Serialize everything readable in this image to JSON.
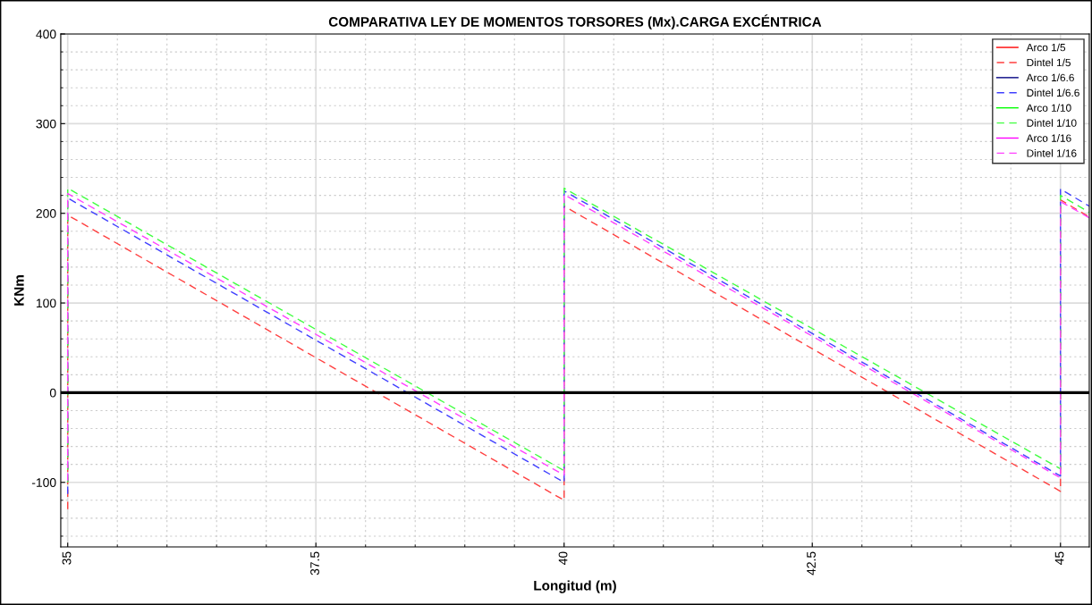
{
  "chart_data": {
    "type": "line",
    "title": "COMPARATIVA LEY DE MOMENTOS TORSORES (Mx).CARGA EXCÉNTRICA",
    "xlabel": "Longitud (m)",
    "ylabel": "KNm",
    "x": [
      35,
      35,
      40,
      40,
      45,
      45,
      45.29
    ],
    "series": [
      {
        "name": "Arco 1/5",
        "color": "#ff0000",
        "line_style": "solid",
        "values": [
          null,
          null,
          null,
          null,
          null,
          null,
          null
        ]
      },
      {
        "name": "Dintel 1/5",
        "color": "#ff4040",
        "line_style": "dashed",
        "values": [
          -130,
          198,
          -120,
          208,
          -110,
          215,
          196
        ]
      },
      {
        "name": "Arco 1/6.6",
        "color": "#000080",
        "line_style": "solid",
        "values": [
          null,
          null,
          null,
          null,
          null,
          null,
          null
        ]
      },
      {
        "name": "Dintel 1/6.6",
        "color": "#4040ff",
        "line_style": "dashed",
        "values": [
          -113,
          217,
          -100,
          225,
          -93,
          227,
          208
        ]
      },
      {
        "name": "Arco 1/10",
        "color": "#00ff00",
        "line_style": "solid",
        "values": [
          null,
          null,
          null,
          null,
          null,
          null,
          null
        ]
      },
      {
        "name": "Dintel 1/10",
        "color": "#40ff40",
        "line_style": "dashed",
        "values": [
          -100,
          228,
          -87,
          228,
          -85,
          220,
          201
        ]
      },
      {
        "name": "Arco 1/16",
        "color": "#ff00ff",
        "line_style": "solid",
        "values": [
          null,
          null,
          null,
          null,
          null,
          null,
          null
        ]
      },
      {
        "name": "Dintel 1/16",
        "color": "#ff40ff",
        "line_style": "dashed",
        "values": [
          -98,
          222,
          -92,
          221,
          -95,
          213,
          195
        ]
      }
    ],
    "ref_lines": [
      {
        "axis": "y",
        "value": 0,
        "color": "#000000"
      }
    ],
    "xlim": [
      34.93,
      45.29
    ],
    "xticks": [
      35,
      37.5,
      40,
      42.5,
      45
    ],
    "ylim": [
      -172,
      400
    ],
    "yticks": [
      -100,
      0,
      100,
      200,
      300,
      400
    ],
    "grid": true,
    "legend": "top right"
  }
}
